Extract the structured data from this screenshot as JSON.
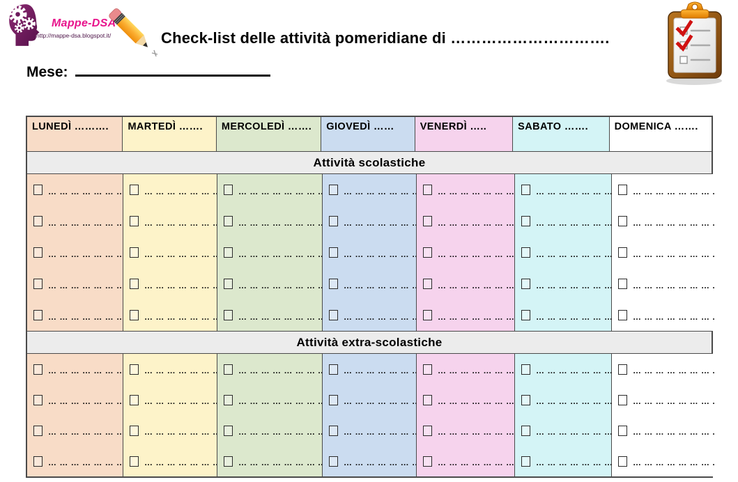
{
  "branding": {
    "name": "Mappe-DSA",
    "url": "http://mappe-dsa.blogspot.it/"
  },
  "header": {
    "title": "Check-list delle attività pomeridiane di ………………………….",
    "month_label": "Mese:",
    "month_value": ""
  },
  "icons": {
    "logo": "head-with-gears-icon",
    "pencil": "pencil-icon",
    "clipboard": "clipboard-checklist-icon"
  },
  "table": {
    "day_columns": [
      {
        "key": "lunedi",
        "label": "LUNEDÌ ……….",
        "color": "#f8dcc7"
      },
      {
        "key": "martedi",
        "label": "MARTEDÌ …….",
        "color": "#fdf3c9"
      },
      {
        "key": "mercoledi",
        "label": "MERCOLEDÌ …….",
        "color": "#dce8cd"
      },
      {
        "key": "giovedi",
        "label": "GIOVEDÌ ……",
        "color": "#cbdcf0"
      },
      {
        "key": "venerdi",
        "label": "VENERDÌ …..",
        "color": "#f6d3ed"
      },
      {
        "key": "sabato",
        "label": "SABATO …….",
        "color": "#d4f4f6"
      },
      {
        "key": "domenica",
        "label": "DOMENICA …….",
        "color": "#ffffff"
      }
    ],
    "sections": [
      {
        "key": "scolastiche",
        "title": "Attività scolastiche",
        "rows_per_column": 5,
        "line_text": "… … … … … … … ..",
        "checkbox_state": "unchecked"
      },
      {
        "key": "extra-scolastiche",
        "title": "Attività extra-scolastiche",
        "rows_per_column": 4,
        "line_text": "… … … … … … … ..",
        "checkbox_state": "unchecked"
      }
    ],
    "band_color": "#ececec",
    "border_color": "#4a4a4a"
  },
  "colors": {
    "logo_magenta": "#e8148c",
    "logo_purple": "#6d1a5c",
    "text": "#000000",
    "page_bg": "#ffffff"
  }
}
